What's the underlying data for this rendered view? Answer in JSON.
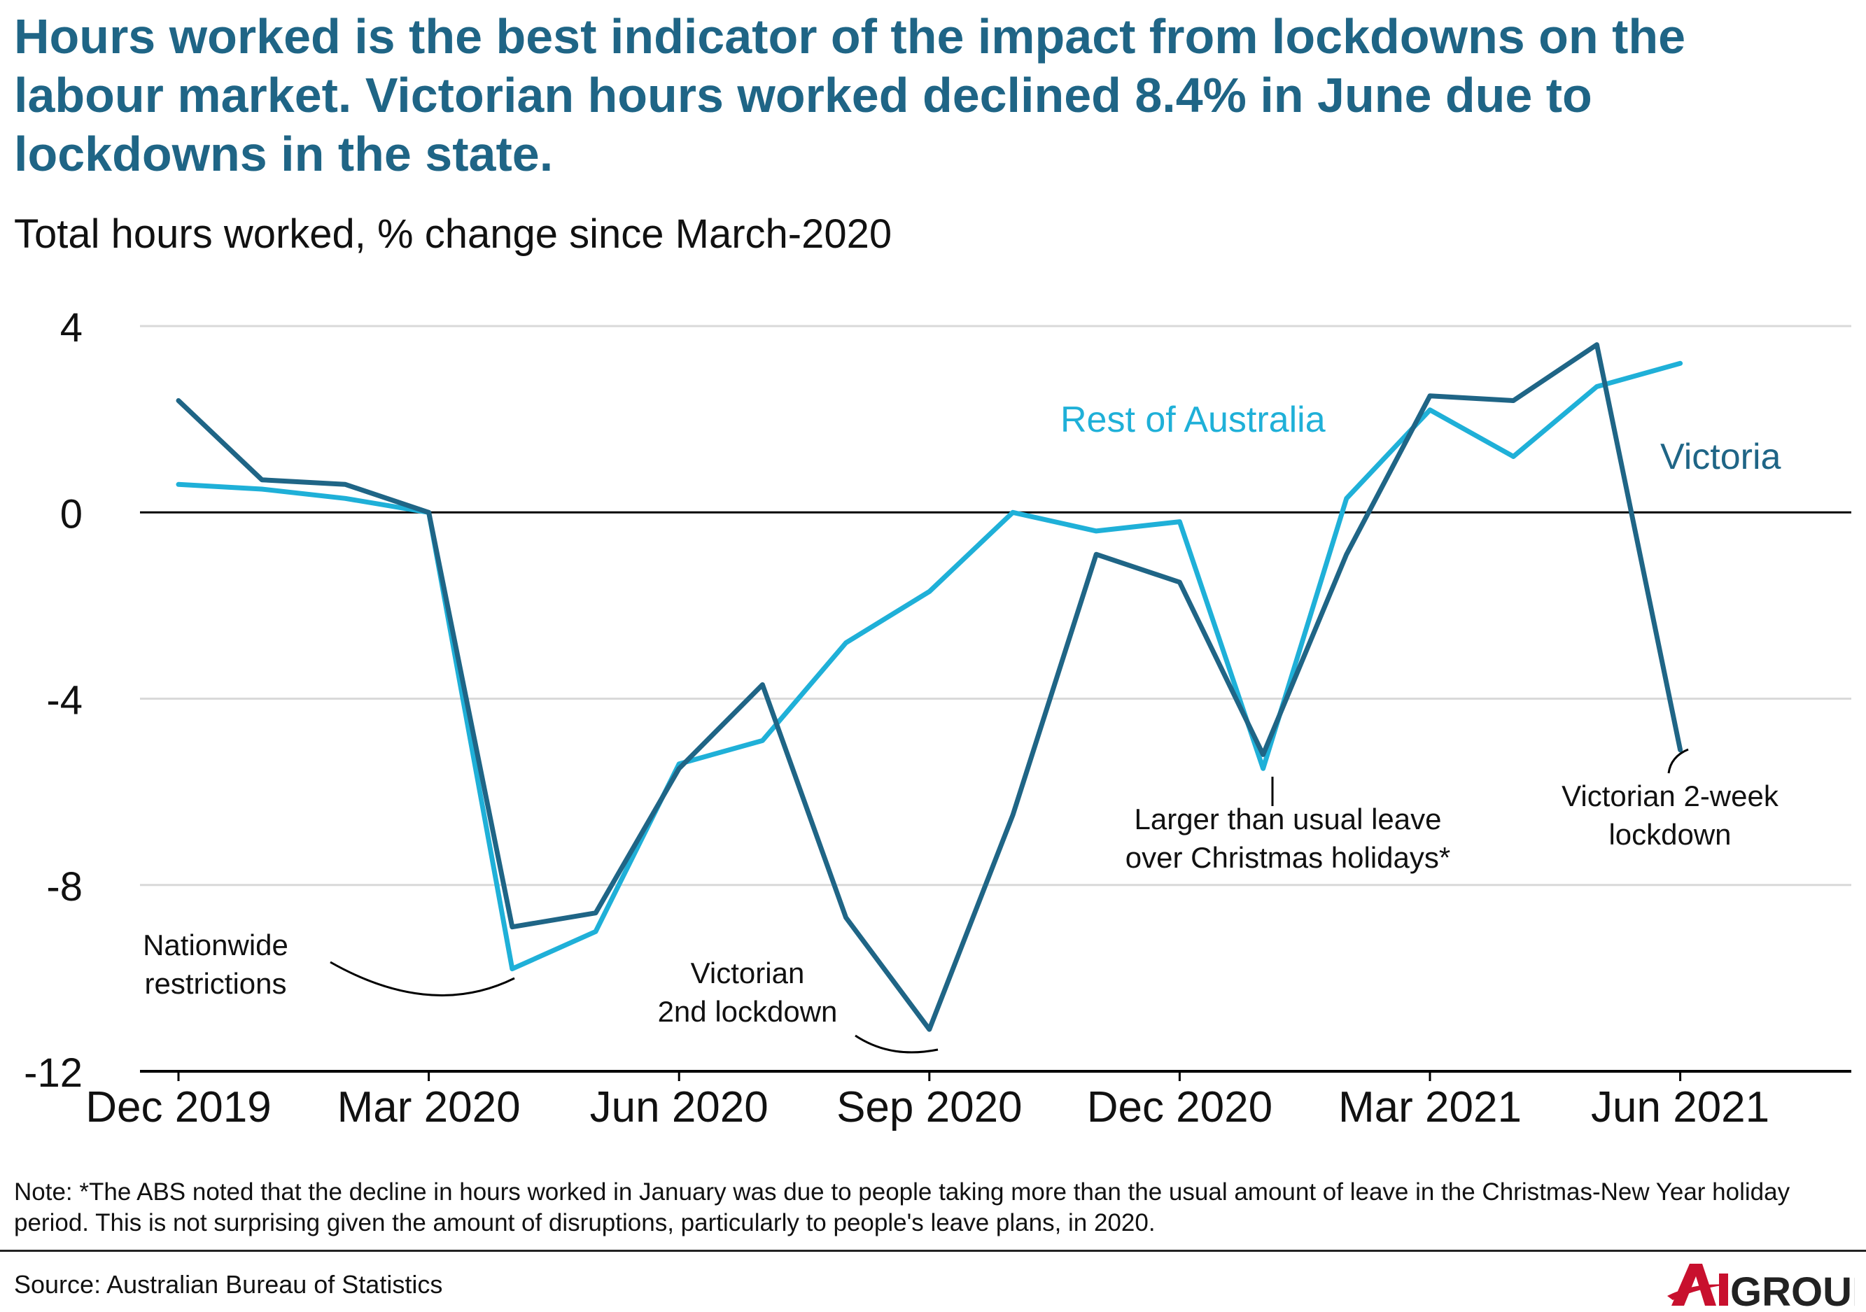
{
  "title": "Hours worked is the best indicator of the impact from lockdowns on the labour market. Victorian hours worked declined 8.4% in June due to lockdowns in the state.",
  "subtitle": "Total hours worked, % change since March-2020",
  "note": "Note: *The ABS noted that the decline in hours worked in January was due to people taking more than the usual amount of leave in the Christmas-New Year holiday period. This is not surprising given the amount of disruptions, particularly to people's leave plans, in 2020.",
  "source": "Source: Australian Bureau of Statistics",
  "logo": {
    "text": "AiGROUP",
    "colors": {
      "a": "#c8102e",
      "i": "#c8102e",
      "group": "#222222"
    }
  },
  "colors": {
    "victoria": "#1f6586",
    "rest": "#1fb0d8",
    "title": "#1f6586",
    "grid": "#d9d9d9",
    "zero": "#000000"
  },
  "chart_data": {
    "type": "line",
    "x": [
      "Dec 2019",
      "Jan 2020",
      "Feb 2020",
      "Mar 2020",
      "Apr 2020",
      "May 2020",
      "Jun 2020",
      "Jul 2020",
      "Aug 2020",
      "Sep 2020",
      "Oct 2020",
      "Nov 2020",
      "Dec 2020",
      "Jan 2021",
      "Feb 2021",
      "Mar 2021",
      "Apr 2021",
      "May 2021",
      "Jun 2021"
    ],
    "x_tick_labels": [
      "Dec 2019",
      "Mar 2020",
      "Jun 2020",
      "Sep 2020",
      "Dec 2020",
      "Mar 2021",
      "Jun 2021"
    ],
    "x_tick_indices": [
      0,
      3,
      6,
      9,
      12,
      15,
      18
    ],
    "ylim": [
      -12,
      4
    ],
    "yticks": [
      4,
      0,
      -4,
      -8,
      -12
    ],
    "grid": true,
    "series": [
      {
        "name": "Victoria",
        "values": [
          2.4,
          0.7,
          0.6,
          0,
          -8.9,
          -8.6,
          -5.5,
          -3.7,
          -8.7,
          -11.1,
          -6.5,
          -0.9,
          -1.5,
          -5.2,
          -0.9,
          2.5,
          2.4,
          3.6,
          -5.1
        ]
      },
      {
        "name": "Rest of Australia",
        "values": [
          0.6,
          0.5,
          0.3,
          0,
          -9.8,
          -9.0,
          -5.4,
          -4.9,
          -2.8,
          -1.7,
          0.0,
          -0.4,
          -0.2,
          -5.5,
          0.3,
          2.2,
          1.2,
          2.7,
          3.2
        ]
      }
    ],
    "annotations": [
      {
        "text": "Nationwide",
        "text2": "restrictions"
      },
      {
        "text": "Victorian",
        "text2": "2nd lockdown"
      },
      {
        "text": "Larger than usual leave",
        "text2": "over Christmas holidays*"
      },
      {
        "text": "Victorian 2-week",
        "text2": "lockdown"
      }
    ]
  }
}
